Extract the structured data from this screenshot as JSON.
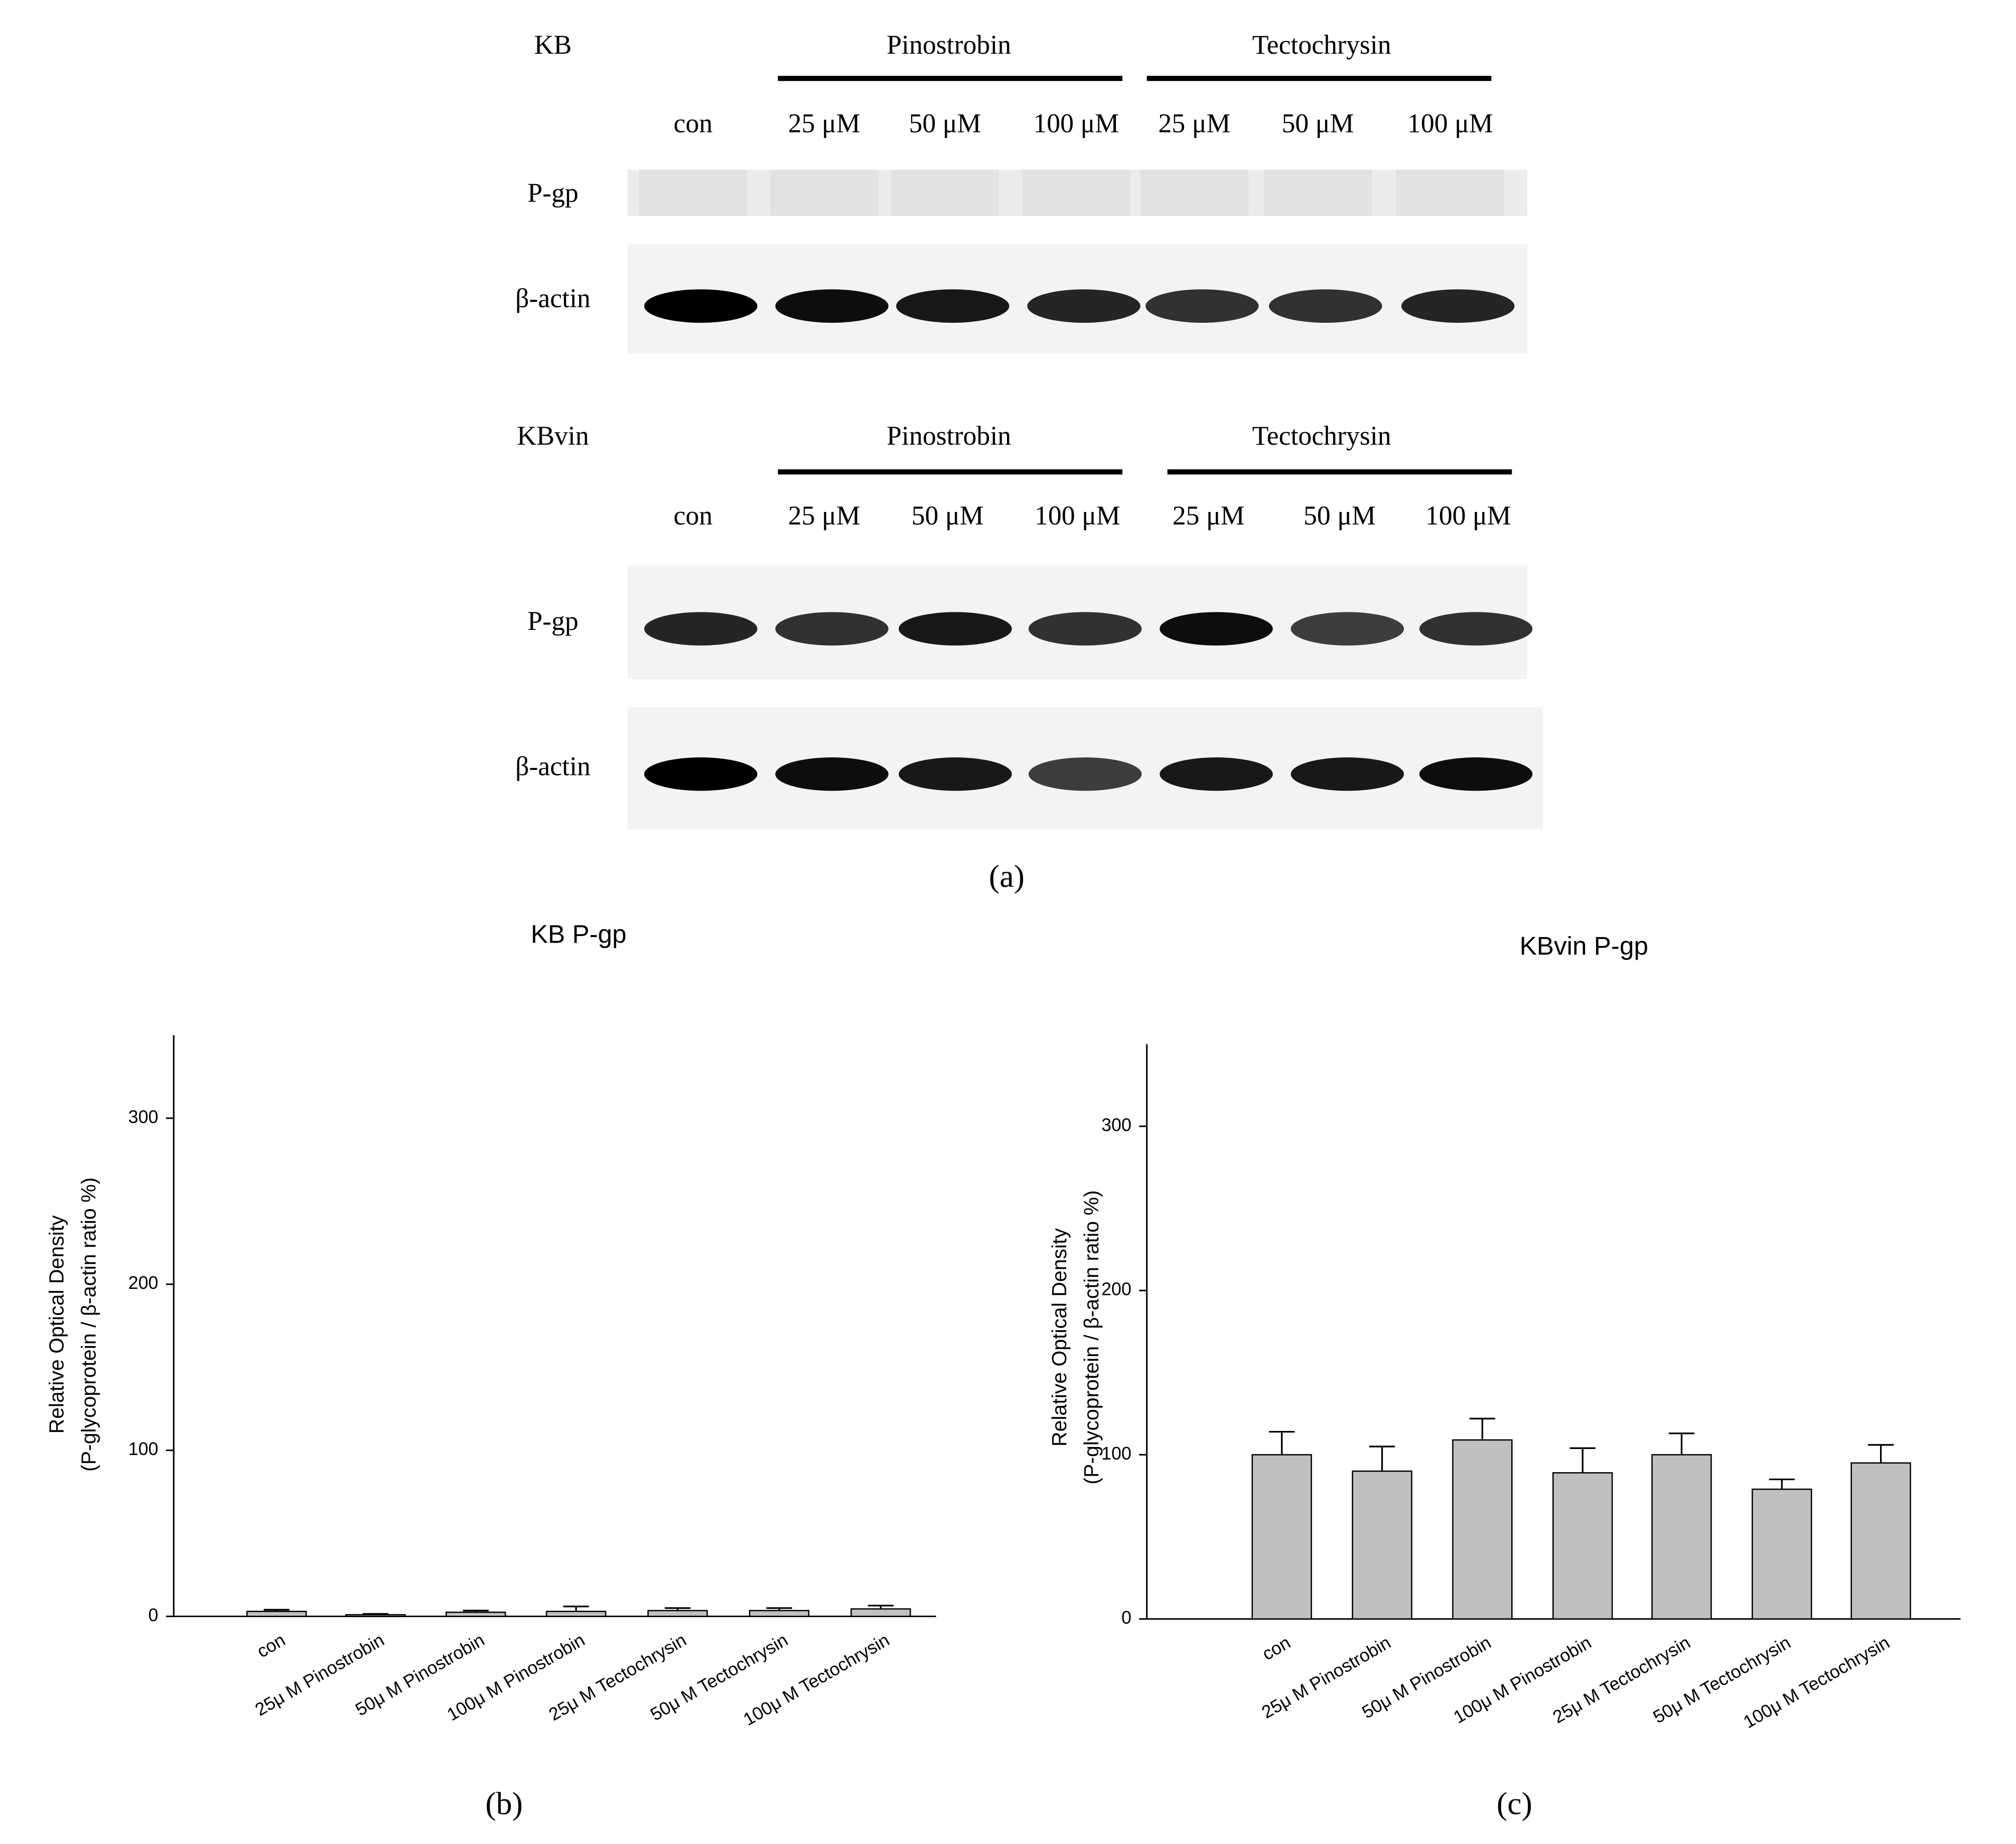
{
  "blots": [
    {
      "cell": "KB",
      "groups": [
        "Pinostrobin",
        "Tectochrysin"
      ],
      "lanes": [
        "con",
        "25 μM",
        "50 μM",
        "100 μM",
        "25 μM",
        "50 μM",
        "100 μM"
      ],
      "rows": [
        "P-gp",
        "β-actin"
      ]
    },
    {
      "cell": "KBvin",
      "groups": [
        "Pinostrobin",
        "Tectochrysin"
      ],
      "lanes": [
        "con",
        "25 μM",
        "50 μM",
        "100 μM",
        "25 μM",
        "50 μM",
        "100 μM"
      ],
      "rows": [
        "P-gp",
        "β-actin"
      ]
    }
  ],
  "panel_labels": [
    "(a)",
    "(b)",
    "(c)"
  ],
  "chart_data": [
    {
      "type": "bar",
      "title": "KB P-gp",
      "ylabel_lines": [
        "Relative Optical Density",
        "(P-glycoprotein / β-actin ratio %)"
      ],
      "categories": [
        "con",
        "25μ M Pinostrobin",
        "50μ M Pinostrobin",
        "100μ M Pinostrobin",
        "25μ M Tectochrysin",
        "50μ M Tectochrysin",
        "100μ M Tectochrysin"
      ],
      "values": [
        3,
        1,
        2.5,
        3,
        3.5,
        3.5,
        4.5
      ],
      "errors": [
        1,
        0.5,
        1,
        3,
        1.5,
        1.5,
        2
      ],
      "color": "#c0c0c0",
      "ylim": [
        0,
        350
      ],
      "yticks": [
        0,
        100,
        200,
        300
      ]
    },
    {
      "type": "bar",
      "title": "KBvin P-gp",
      "ylabel_lines": [
        "Relative Optical Density",
        "(P-glycoprotein / β-actin ratio %)"
      ],
      "categories": [
        "con",
        "25μ M Pinostrobin",
        "50μ M Pinostrobin",
        "100μ M Pinostrobin",
        "25μ M Tectochrysin",
        "50μ M Tectochrysin",
        "100μ M Tectochrysin"
      ],
      "values": [
        100,
        90,
        109,
        89,
        100,
        79,
        95
      ],
      "errors": [
        14,
        15,
        13,
        15,
        13,
        6,
        11
      ],
      "color": "#c0c0c0",
      "ylim": [
        0,
        350
      ],
      "yticks": [
        0,
        100,
        200,
        300
      ]
    }
  ]
}
